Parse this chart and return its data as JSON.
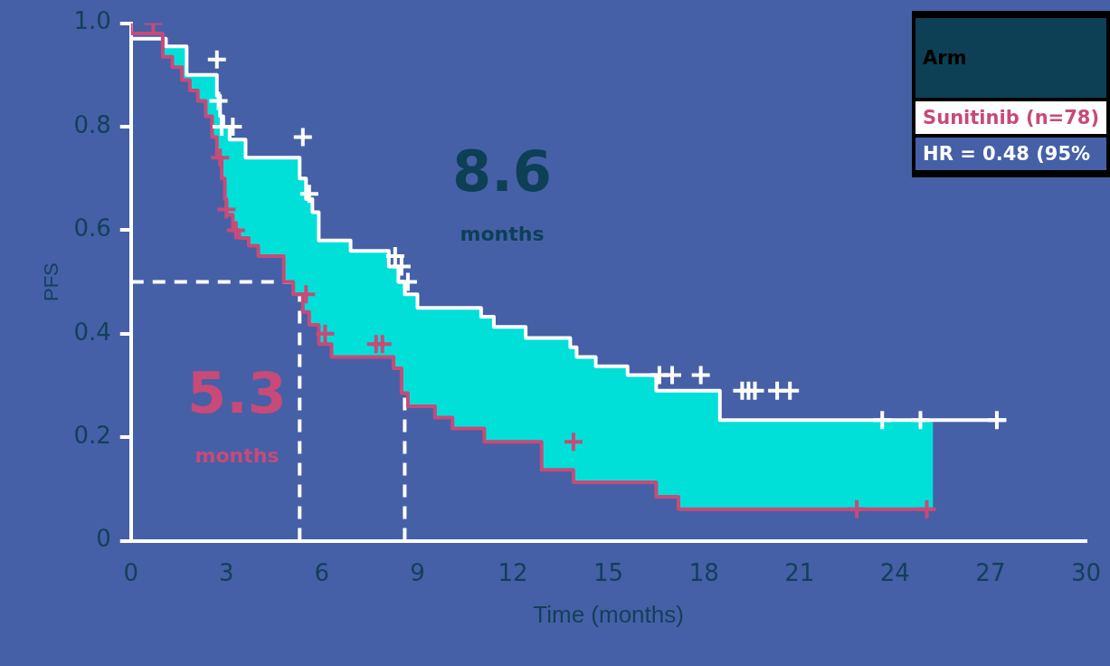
{
  "chart_data": {
    "type": "step",
    "xlabel": "Time (months)",
    "ylabel": "PFS",
    "legend_title": "Arm",
    "legend": "top right",
    "grid": false,
    "line_style": "solid",
    "marker": "none",
    "xlim": [
      0,
      30
    ],
    "xticks": [
      0,
      3,
      6,
      9,
      12,
      15,
      18,
      21,
      24,
      27,
      30
    ],
    "ylim": [
      0,
      1
    ],
    "yticks": [
      0,
      0.2,
      0.4,
      0.6,
      0.8,
      {
        "value": 1,
        "label": "1.0"
      }
    ],
    "series": [
      {
        "color": "#ffffff",
        "x": [
          0,
          1.1,
          1.75,
          2.7,
          2.8,
          2.9,
          3.1,
          3.6,
          5.3,
          5.5,
          5.7,
          5.9,
          6.9,
          8.1,
          8.4,
          8.6,
          9.0,
          11.0,
          11.4,
          12.4,
          13.8,
          14.0,
          14.6,
          15.6,
          16.5,
          18.5,
          22.1,
          27.5
        ],
        "values": [
          1,
          0.97,
          0.955,
          0.9,
          0.86,
          0.82,
          0.8,
          0.775,
          0.74,
          0.7,
          0.66,
          0.635,
          0.58,
          0.56,
          0.53,
          0.5,
          0.476,
          0.45,
          0.433,
          0.413,
          0.392,
          0.374,
          0.355,
          0.337,
          0.32,
          0.29,
          0.233,
          0.233
        ]
      },
      {
        "name": "Sunitinib (n=78)",
        "color": "#c84a78",
        "x": [
          0,
          1.0,
          1.3,
          1.6,
          1.85,
          2.1,
          2.35,
          2.55,
          2.7,
          2.85,
          2.95,
          3.0,
          3.2,
          3.4,
          3.7,
          4.0,
          4.8,
          5.1,
          5.4,
          5.6,
          5.9,
          6.3,
          8.25,
          8.5,
          8.7,
          9.55,
          10.1,
          11.1,
          12.9,
          13.9,
          16.5,
          17.2,
          19.0,
          25.2
        ],
        "values": [
          1,
          0.98,
          0.935,
          0.915,
          0.89,
          0.87,
          0.85,
          0.82,
          0.78,
          0.74,
          0.7,
          0.66,
          0.63,
          0.6,
          0.585,
          0.57,
          0.55,
          0.5,
          0.476,
          0.442,
          0.417,
          0.38,
          0.355,
          0.333,
          0.285,
          0.26,
          0.238,
          0.217,
          0.191,
          0.137,
          0.113,
          0.085,
          0.061,
          0.061
        ]
      },
      {
        "type": "scatter",
        "marker": "cross",
        "color": "#ffffff",
        "x": [
          2.7,
          2.75,
          2.85,
          3.2,
          5.4,
          5.6,
          8.3,
          8.5,
          8.7,
          16.6,
          17.0,
          17.9,
          19.2,
          19.4,
          19.6,
          20.3,
          20.7,
          23.6,
          24.8,
          27.2
        ],
        "values": [
          0.93,
          0.85,
          0.8,
          0.8,
          0.78,
          0.67,
          0.55,
          0.53,
          0.5,
          0.32,
          0.32,
          0.32,
          0.29,
          0.29,
          0.29,
          0.29,
          0.29,
          0.233,
          0.233,
          0.233
        ]
      },
      {
        "type": "scatter",
        "marker": "cross",
        "color": "#c84a78",
        "x": [
          0.7,
          2.8,
          3.0,
          3.3,
          5.5,
          6.1,
          7.7,
          7.9,
          13.9,
          22.8,
          25.0
        ],
        "values": [
          1,
          0.74,
          0.64,
          0.6,
          0.476,
          0.4,
          0.38,
          0.38,
          0.191,
          0.061,
          0.061
        ]
      }
    ],
    "ref_lines": [
      {
        "axis": "y",
        "value": 0.5,
        "line_style": "dashed",
        "color": "#ffffff"
      },
      {
        "axis": "x",
        "value": 5.3,
        "line_style": "dashed",
        "color": "#ffffff"
      },
      {
        "axis": "x",
        "value": 8.6,
        "line_style": "dashed",
        "color": "#ffffff"
      }
    ],
    "annotations": [
      "8.6",
      "months",
      "5.3",
      "months",
      "HR = 0.48 (95%"
    ]
  }
}
